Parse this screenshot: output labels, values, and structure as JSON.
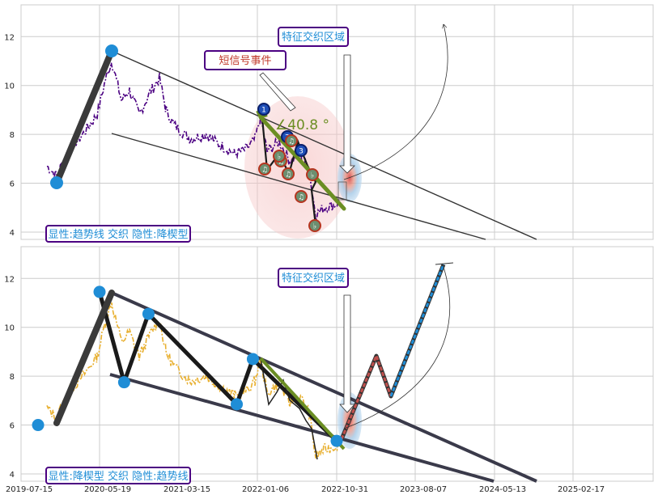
{
  "chart_data": [
    {
      "type": "line",
      "panel": "top",
      "ylim": [
        3.7,
        13.3
      ],
      "yticks": [
        "4",
        "6",
        "8",
        "10",
        "12"
      ],
      "grid": true,
      "colors": {
        "price": "#4b0082",
        "trend": "#333333",
        "accent": "#6b8e23",
        "marker": "#1f8dd6"
      },
      "annotations": {
        "short_signal": "短信号事件",
        "feature_zone": "特征交织区域",
        "angle": "∠40.8 °",
        "legend": "显性:趋势线 交织 隐性:降楔型"
      },
      "marker_labels": [
        "1",
        "2",
        "3",
        "♫",
        "♫",
        "♫",
        "♫",
        "♫",
        "♭",
        "♭",
        "♭"
      ]
    },
    {
      "type": "line",
      "panel": "bottom",
      "ylim": [
        3.7,
        13.3
      ],
      "yticks": [
        "4",
        "6",
        "8",
        "10",
        "12"
      ],
      "xticks": [
        "2019-07-15",
        "2020-05-19",
        "2021-03-15",
        "2022-01-06",
        "2022-10-31",
        "2023-08-07",
        "2024-05-13",
        "2025-02-17"
      ],
      "grid": true,
      "colors": {
        "price": "#e8b030",
        "trend": "#3a3a4a",
        "projection_up": "#c0504d",
        "projection_far": "#1f8dd6"
      },
      "wave_points": [
        {
          "x": "2019-09-20",
          "y": 6.0
        },
        {
          "x": "2020-05-19",
          "y": 11.45
        },
        {
          "x": "2020-08-20",
          "y": 7.75
        },
        {
          "x": "2020-11-20",
          "y": 10.55
        },
        {
          "x": "2021-10-20",
          "y": 6.85
        },
        {
          "x": "2021-12-20",
          "y": 8.7
        },
        {
          "x": "2022-10-31",
          "y": 5.35
        }
      ],
      "annotations": {
        "feature_zone": "特征交织区域",
        "legend": "显性:降楔型 交织 隐性:趋势线"
      }
    }
  ]
}
